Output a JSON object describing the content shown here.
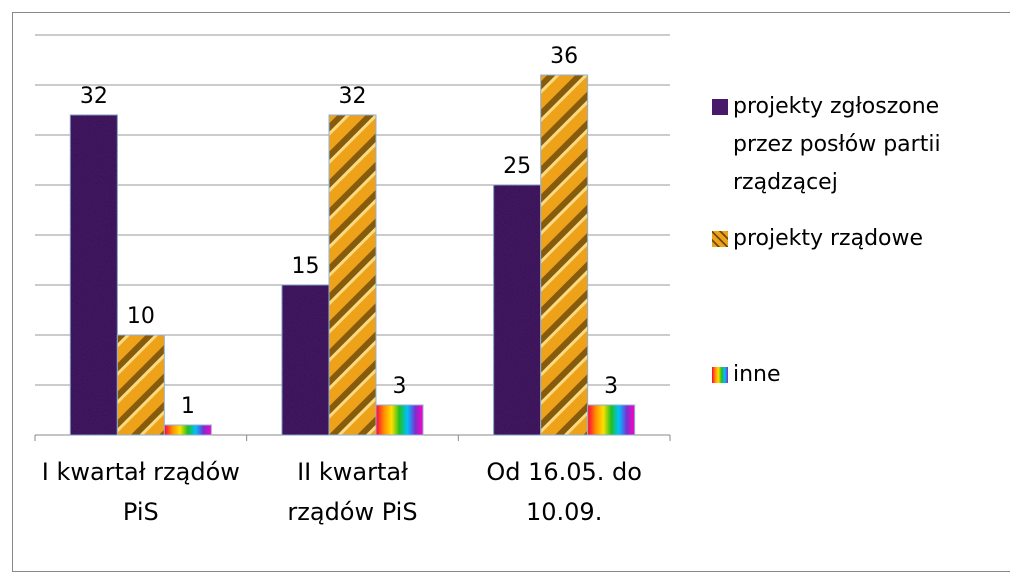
{
  "chart_data": {
    "type": "bar",
    "categories": [
      "I kwartał rządów PiS",
      "II kwartał rządów PiS",
      "Od 16.05. do 10.09."
    ],
    "series": [
      {
        "name": "projekty zgłoszone przez posłów partii rządzącej",
        "color": "#4a1a6a",
        "values": [
          32,
          15,
          25
        ]
      },
      {
        "name": "projekty rządowe",
        "color": "#eea21a",
        "values": [
          10,
          32,
          36
        ]
      },
      {
        "name": "inne",
        "color": "#7b2fd0",
        "values": [
          1,
          3,
          3
        ]
      }
    ],
    "ylim": [
      0,
      40
    ],
    "yticks": [
      0,
      5,
      10,
      15,
      20,
      25,
      30,
      35,
      40
    ],
    "grid": true,
    "legend": "right"
  }
}
